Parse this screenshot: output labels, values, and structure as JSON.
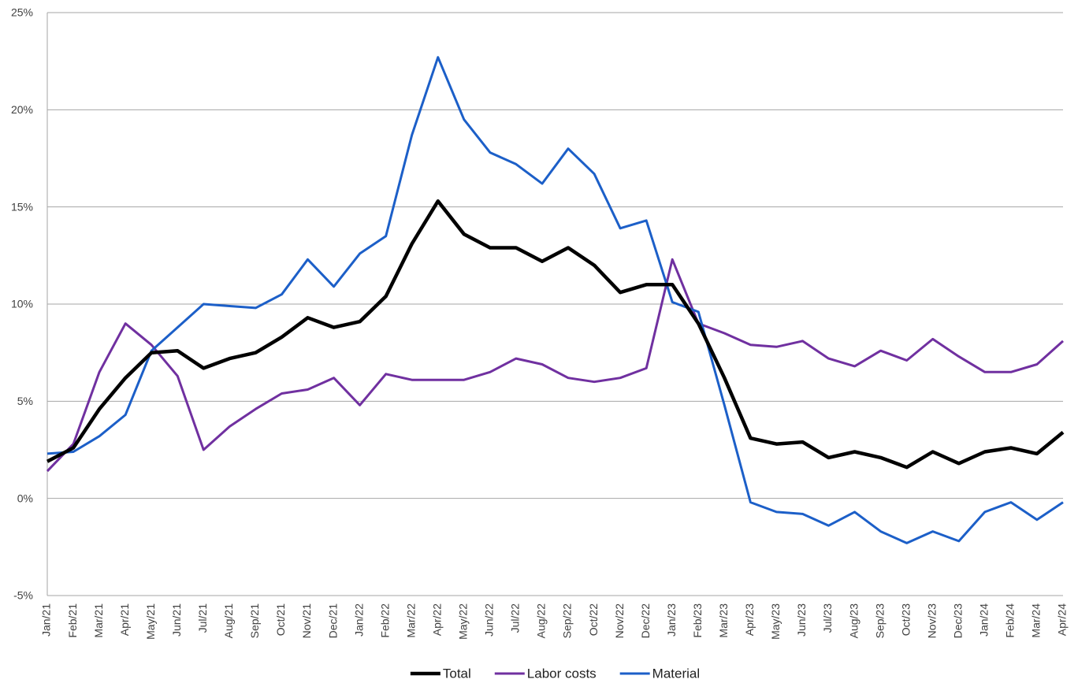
{
  "chart_data": {
    "type": "line",
    "categories": [
      "Jan/21",
      "Feb/21",
      "Mar/21",
      "Apr/21",
      "May/21",
      "Jun/21",
      "Jul/21",
      "Aug/21",
      "Sep/21",
      "Oct/21",
      "Nov/21",
      "Dec/21",
      "Jan/22",
      "Feb/22",
      "Mar/22",
      "Apr/22",
      "May/22",
      "Jun/22",
      "Jul/22",
      "Aug/22",
      "Sep/22",
      "Oct/22",
      "Nov/22",
      "Dec/22",
      "Jan/23",
      "Feb/23",
      "Mar/23",
      "Apr/23",
      "May/23",
      "Jun/23",
      "Jul/23",
      "Aug/23",
      "Sep/23",
      "Oct/23",
      "Nov/23",
      "Dec/23",
      "Jan/24",
      "Feb/24",
      "Mar/24",
      "Apr/24"
    ],
    "series": [
      {
        "name": "Total",
        "color": "#000000",
        "values": [
          1.9,
          2.6,
          4.6,
          6.2,
          7.5,
          7.6,
          6.7,
          7.2,
          7.5,
          8.3,
          9.3,
          8.8,
          9.1,
          10.4,
          13.1,
          15.3,
          13.6,
          12.9,
          12.9,
          12.2,
          12.9,
          12.0,
          10.6,
          11.0,
          11.0,
          9.0,
          6.2,
          3.1,
          2.8,
          2.9,
          2.1,
          2.4,
          2.1,
          1.6,
          2.4,
          1.8,
          2.4,
          2.6,
          2.3,
          3.4
        ]
      },
      {
        "name": "Labor costs",
        "color": "#7030a0",
        "values": [
          1.4,
          2.8,
          6.5,
          9.0,
          7.9,
          6.3,
          2.5,
          3.7,
          4.6,
          5.4,
          5.6,
          6.2,
          4.8,
          6.4,
          6.1,
          6.1,
          6.1,
          6.5,
          7.2,
          6.9,
          6.2,
          6.0,
          6.2,
          6.7,
          12.3,
          9.0,
          8.5,
          7.9,
          7.8,
          8.1,
          7.2,
          6.8,
          7.6,
          7.1,
          8.2,
          7.3,
          6.5,
          6.5,
          6.9,
          8.1
        ]
      },
      {
        "name": "Material",
        "color": "#1c5fc8",
        "values": [
          2.3,
          2.4,
          3.2,
          4.3,
          7.6,
          8.8,
          10.0,
          9.9,
          9.8,
          10.5,
          12.3,
          10.9,
          12.6,
          13.5,
          18.7,
          22.7,
          19.5,
          17.8,
          17.2,
          16.2,
          18.0,
          16.7,
          13.9,
          14.3,
          10.1,
          9.6,
          4.8,
          -0.2,
          -0.7,
          -0.8,
          -1.4,
          -0.7,
          -1.7,
          -2.3,
          -1.7,
          -2.2,
          -0.7,
          -0.2,
          -1.1,
          -0.2
        ]
      }
    ],
    "ylim": [
      -5,
      25
    ],
    "yticks": [
      {
        "value": -5,
        "label": "-5%"
      },
      {
        "value": 0,
        "label": "0%"
      },
      {
        "value": 5,
        "label": "5%"
      },
      {
        "value": 10,
        "label": "10%"
      },
      {
        "value": 15,
        "label": "15%"
      },
      {
        "value": 20,
        "label": "20%"
      },
      {
        "value": 25,
        "label": "25%"
      }
    ],
    "grid": true,
    "legend": "bottom"
  }
}
